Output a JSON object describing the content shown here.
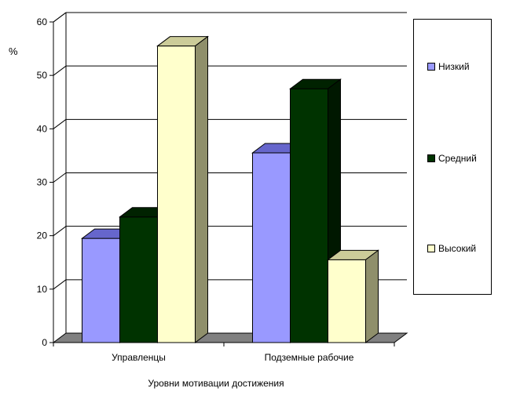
{
  "chart_data": {
    "type": "bar",
    "categories": [
      "Управленцы",
      "Подземные рабочие"
    ],
    "series": [
      {
        "name": "Низкий",
        "values": [
          19.5,
          35.5
        ],
        "color": "#9999ff",
        "top": "#6666cc",
        "side": "#5c5ca3"
      },
      {
        "name": "Средний",
        "values": [
          23.5,
          47.5
        ],
        "color": "#003300",
        "top": "#002200",
        "side": "#001800"
      },
      {
        "name": "Высокий",
        "values": [
          55.5,
          15.5
        ],
        "color": "#ffffcc",
        "top": "#cccc99",
        "side": "#8f8f6b"
      }
    ],
    "title": "",
    "xlabel": "Уровни мотивации достижения",
    "ylabel": "%",
    "ylim": [
      0,
      60
    ],
    "yticks": [
      0,
      10,
      20,
      30,
      40,
      50,
      60
    ],
    "grid": true,
    "legend_position": "right",
    "style": "3d"
  }
}
